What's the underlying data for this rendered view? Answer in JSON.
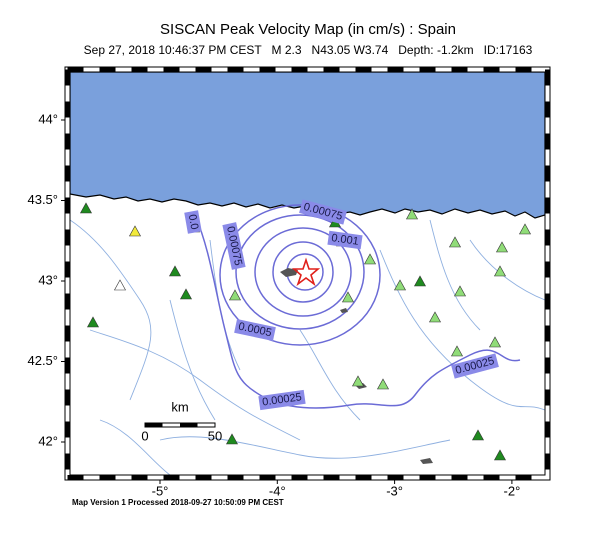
{
  "header": {
    "title": "SISCAN Peak Velocity Map (in cm/s) : Spain",
    "subtitle": "Sep 27, 2018 10:46:37 PM CEST   M 2.3   N43.05 W3.74   Depth: -1.2km   ID:17163"
  },
  "map": {
    "lat_ticks": [
      {
        "value": 44,
        "label": "44°"
      },
      {
        "value": 43.5,
        "label": "43.5°"
      },
      {
        "value": 43,
        "label": "43°"
      },
      {
        "value": 42.5,
        "label": "42.5°"
      },
      {
        "value": 42,
        "label": "42°"
      }
    ],
    "lon_ticks": [
      {
        "value": -5,
        "label": "-5°"
      },
      {
        "value": -4,
        "label": "-4°"
      },
      {
        "value": -3,
        "label": "-3°"
      },
      {
        "value": -2,
        "label": "-2°"
      }
    ],
    "contour_labels": [
      "0.0",
      "0.00075",
      "0.00075",
      "0.001",
      "0.0005",
      "0.00025",
      "0.00025"
    ],
    "scale_bar": {
      "unit": "km",
      "labels": [
        "0",
        "50"
      ]
    }
  },
  "footer": "Map Version 1 Processed 2018-09-27 10:50:09 PM CEST"
}
